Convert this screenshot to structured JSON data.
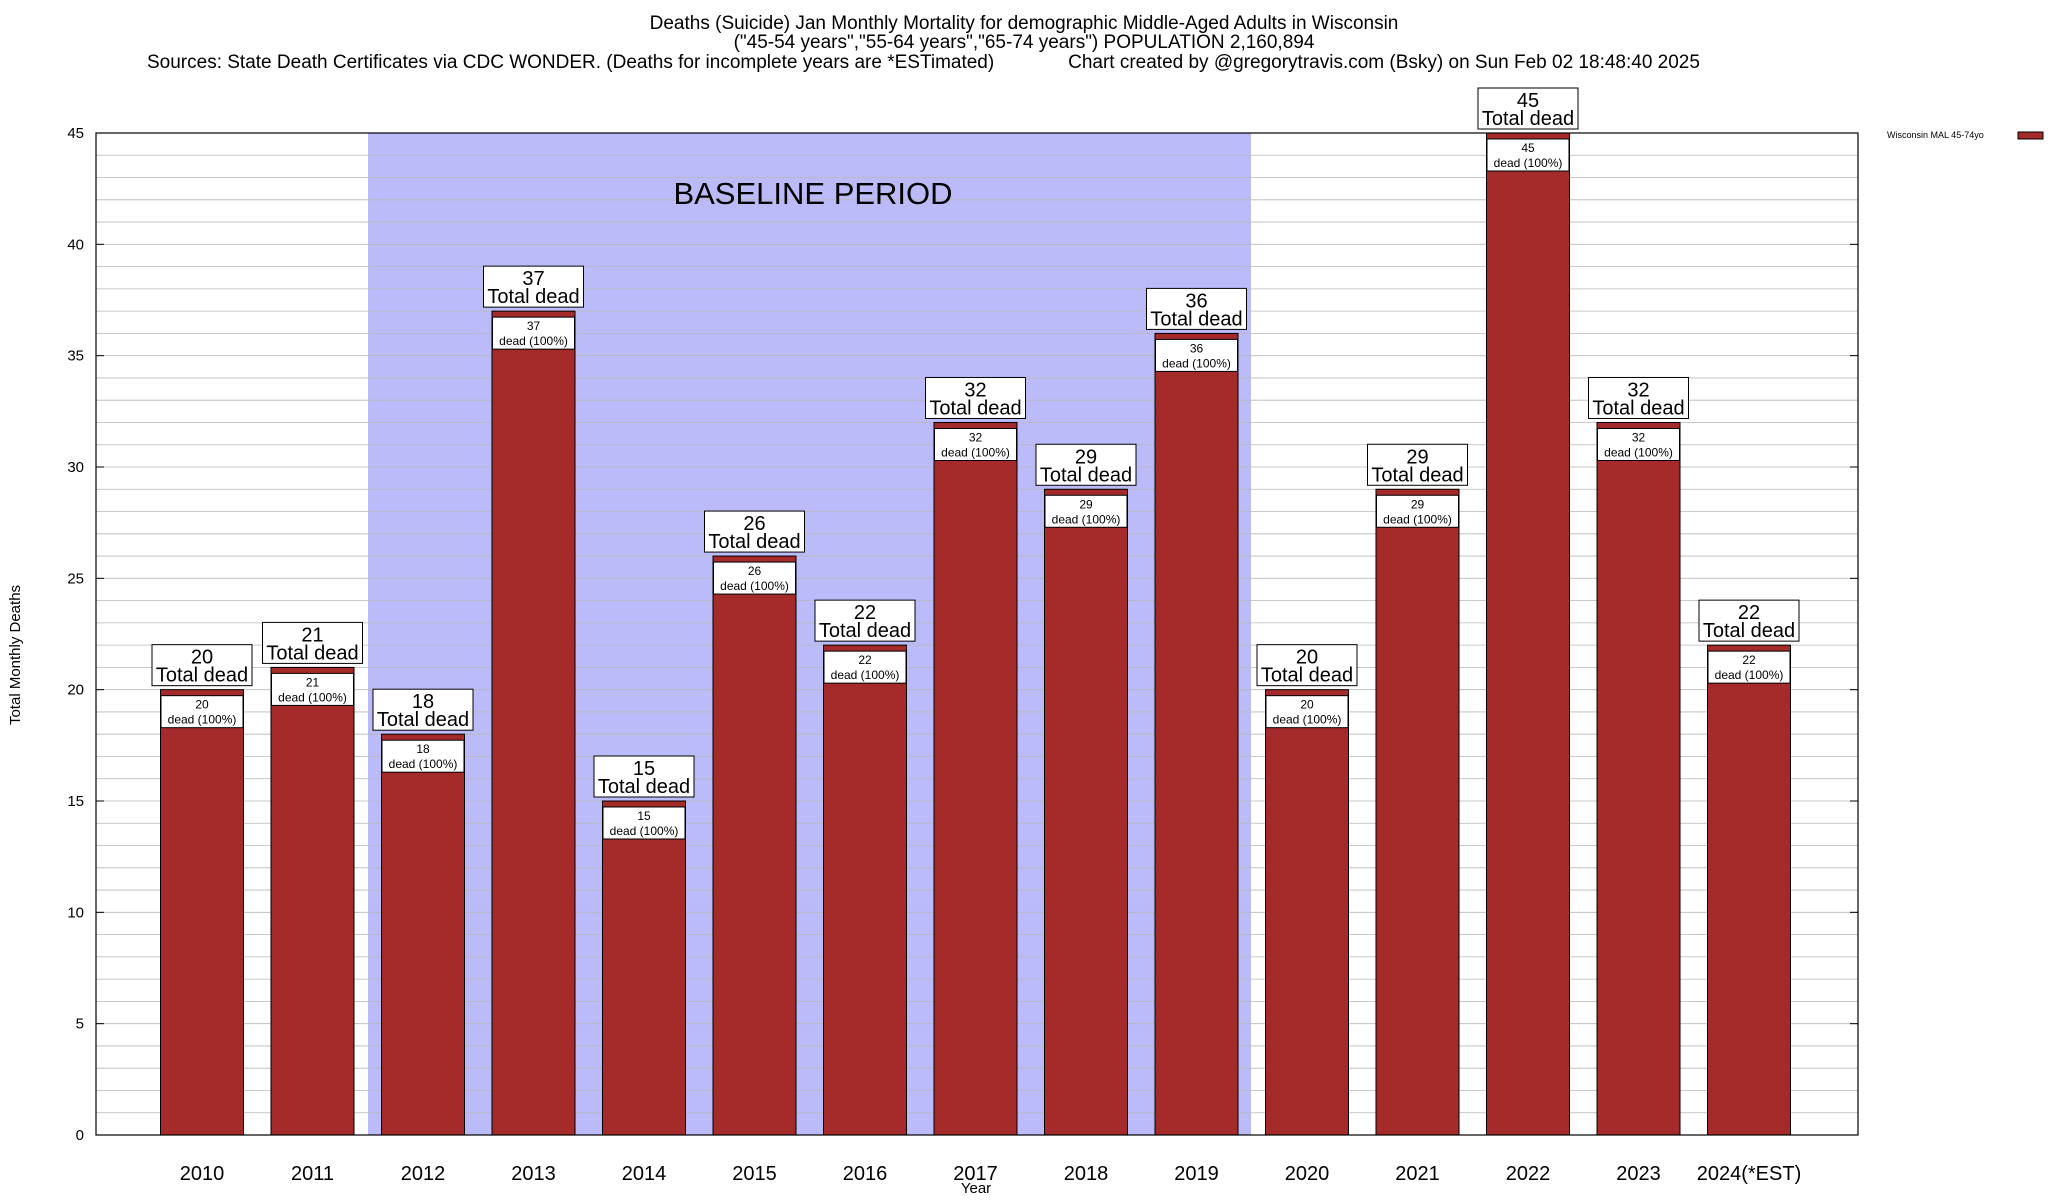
{
  "chart_data": {
    "type": "bar",
    "title_line1": "Deaths (Suicide) Jan Monthly Mortality for demographic Middle-Aged Adults in Wisconsin",
    "title_line2": "(\"45-54 years\",\"55-64 years\",\"65-74 years\") POPULATION 2,160,894",
    "title_line3": "Sources: State Death Certificates via CDC WONDER. (Deaths for incomplete years are *ESTimated)              Chart created by @gregorytravis.com (Bsky) on Sun Feb 02 18:48:40 2025",
    "xlabel": "Year",
    "ylabel": "Total Monthly Deaths",
    "ylim": [
      0,
      45
    ],
    "y_ticks": [
      0,
      5,
      10,
      15,
      20,
      25,
      30,
      35,
      40,
      45
    ],
    "categories": [
      "2010",
      "2011",
      "2012",
      "2013",
      "2014",
      "2015",
      "2016",
      "2017",
      "2018",
      "2019",
      "2020",
      "2021",
      "2022",
      "2023",
      "2024(*EST)"
    ],
    "series": [
      {
        "name": "Wisconsin MAL 45-74yo",
        "values": [
          20,
          21,
          18,
          37,
          15,
          26,
          22,
          32,
          29,
          36,
          20,
          29,
          45,
          32,
          22
        ]
      }
    ],
    "total_label": "Total dead",
    "inner_label_suffix": "dead (100%)",
    "baseline": {
      "label": "BASELINE PERIOD",
      "from": "2012",
      "to": "2019"
    },
    "colors": {
      "bar": "#a52a2a",
      "baseline": "#bbbbfa",
      "grid": "#b8b8b8"
    }
  }
}
